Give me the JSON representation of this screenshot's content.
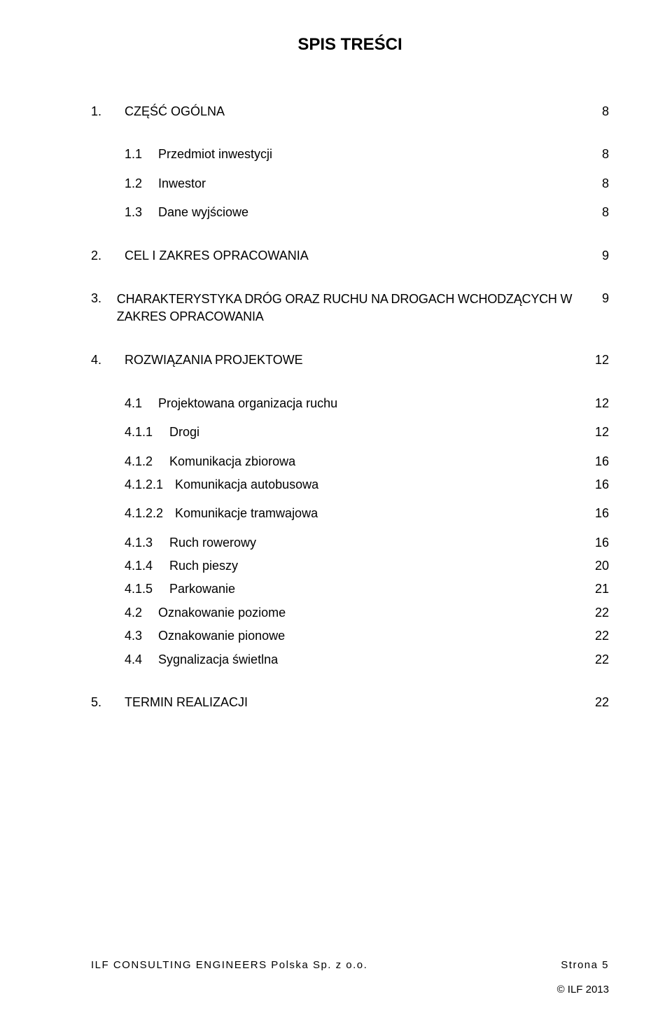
{
  "title": "SPIS TREŚCI",
  "toc": [
    {
      "num": "1.",
      "text": "CZĘŚĆ OGÓLNA",
      "page": "8",
      "level": 1,
      "gap": "l"
    },
    {
      "num": "1.1",
      "text": "Przedmiot inwestycji",
      "page": "8",
      "level": 2,
      "gap": "m"
    },
    {
      "num": "1.2",
      "text": "Inwestor",
      "page": "8",
      "level": 2,
      "gap": "m"
    },
    {
      "num": "1.3",
      "text": "Dane wyjściowe",
      "page": "8",
      "level": 2,
      "gap": "l"
    },
    {
      "num": "2.",
      "text": "CEL I ZAKRES OPRACOWANIA",
      "page": "9",
      "level": 1,
      "gap": "l"
    },
    {
      "num": "3.",
      "text": "CHARAKTERYSTYKA DRÓG ORAZ RUCHU NA DROGACH WCHODZĄCYCH W ZAKRES OPRACOWANIA",
      "page": "9",
      "level": 1,
      "gap": "l",
      "multiline": true
    },
    {
      "num": "4.",
      "text": "ROZWIĄZANIA PROJEKTOWE",
      "page": "12",
      "level": 1,
      "gap": "l"
    },
    {
      "num": "4.1",
      "text": "Projektowana organizacja ruchu",
      "page": "12",
      "level": 2,
      "gap": "m"
    },
    {
      "num": "4.1.1",
      "text": "Drogi",
      "page": "12",
      "level": 3,
      "gap": "m"
    },
    {
      "num": "4.1.2",
      "text": "Komunikacja zbiorowa",
      "page": "16",
      "level": 3,
      "gap": "s"
    },
    {
      "num": "4.1.2.1",
      "text": "Komunikacja autobusowa",
      "page": "16",
      "level": 4,
      "gap": "m"
    },
    {
      "num": "4.1.2.2",
      "text": "Komunikacje tramwajowa",
      "page": "16",
      "level": 4,
      "gap": "m"
    },
    {
      "num": "4.1.3",
      "text": "Ruch rowerowy",
      "page": "16",
      "level": 3,
      "gap": "s"
    },
    {
      "num": "4.1.4",
      "text": "Ruch pieszy",
      "page": "20",
      "level": 3,
      "gap": "s"
    },
    {
      "num": "4.1.5",
      "text": "Parkowanie",
      "page": "21",
      "level": 3,
      "gap": "s"
    },
    {
      "num": "4.2",
      "text": "Oznakowanie poziome",
      "page": "22",
      "level": 2,
      "gap": "s"
    },
    {
      "num": "4.3",
      "text": "Oznakowanie pionowe",
      "page": "22",
      "level": 2,
      "gap": "s"
    },
    {
      "num": "4.4",
      "text": "Sygnalizacja świetlna",
      "page": "22",
      "level": 2,
      "gap": "l"
    },
    {
      "num": "5.",
      "text": "TERMIN REALIZACJI",
      "page": "22",
      "level": 1,
      "gap": "l"
    }
  ],
  "footer": {
    "left": "ILF CONSULTING ENGINEERS Polska Sp. z o.o.",
    "right": "Strona 5"
  },
  "copyright": "© ILF 2013"
}
